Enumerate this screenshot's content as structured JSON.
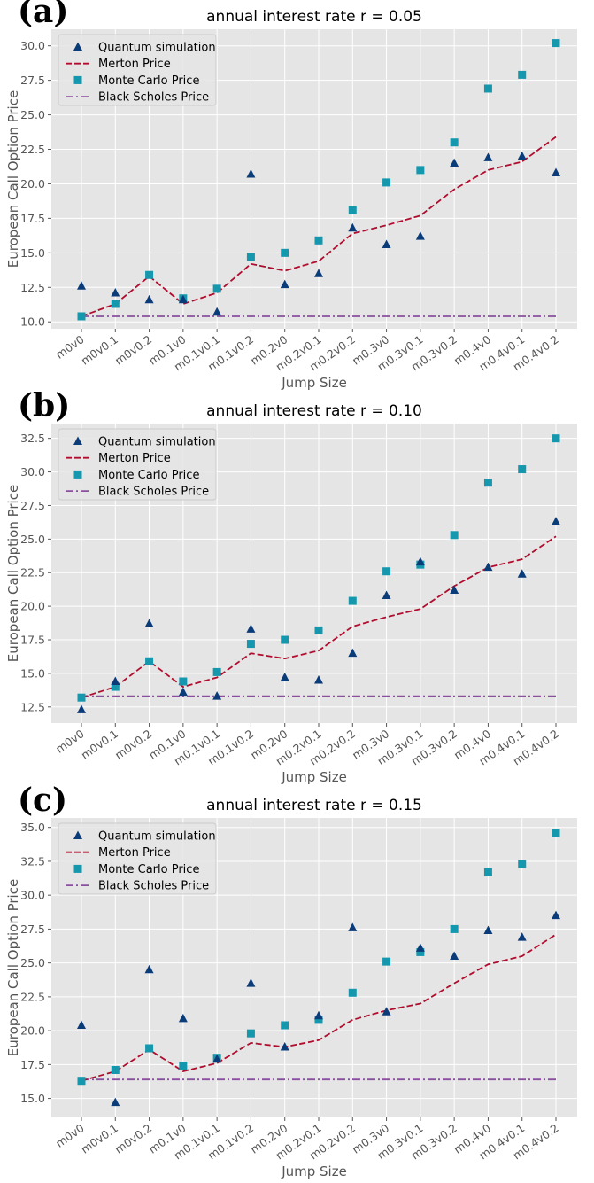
{
  "colors": {
    "quantum": "#0b3c7a",
    "merton": "#b00d2e",
    "monte_carlo": "#1597ad",
    "black_scholes": "#8a4f9e",
    "plot_bg": "#e5e5e5",
    "grid": "#ffffff"
  },
  "chart_data": [
    {
      "type": "line",
      "panel_label": "(a)",
      "title": "annual interest rate r = 0.05",
      "xlabel": "Jump Size",
      "ylabel": "European Call Option Price",
      "ylim": [
        9.5,
        31.2
      ],
      "yticks": [
        "10.0",
        "12.5",
        "15.0",
        "17.5",
        "20.0",
        "22.5",
        "25.0",
        "27.5",
        "30.0"
      ],
      "categories": [
        "m0v0",
        "m0v0.1",
        "m0v0.2",
        "m0.1v0",
        "m0.1v0.1",
        "m0.1v0.2",
        "m0.2v0",
        "m0.2v0.1",
        "m0.2v0.2",
        "m0.3v0",
        "m0.3v0.1",
        "m0.3v0.2",
        "m0.4v0",
        "m0.4v0.1",
        "m0.4v0.2"
      ],
      "legend": [
        "Quantum simulation",
        "Merton Price",
        "Monte Carlo Price",
        "Black Scholes Price"
      ],
      "series": [
        {
          "name": "Quantum simulation",
          "marker": "triangle",
          "values": [
            12.6,
            12.1,
            11.6,
            11.6,
            10.7,
            20.7,
            12.7,
            13.5,
            16.8,
            15.6,
            16.2,
            21.5,
            21.9,
            22.0,
            20.8
          ]
        },
        {
          "name": "Merton Price",
          "marker": "dashed-line",
          "values": [
            10.4,
            11.3,
            13.3,
            11.3,
            12.1,
            14.2,
            13.7,
            14.4,
            16.4,
            17.0,
            17.7,
            19.6,
            21.0,
            21.6,
            23.4
          ]
        },
        {
          "name": "Monte Carlo Price",
          "marker": "square",
          "values": [
            10.4,
            11.3,
            13.4,
            11.7,
            12.4,
            14.7,
            15.0,
            15.9,
            18.1,
            20.1,
            21.0,
            23.0,
            26.9,
            27.9,
            30.2
          ]
        },
        {
          "name": "Black Scholes Price",
          "marker": "dashdot-line",
          "values": [
            10.4,
            10.4,
            10.4,
            10.4,
            10.4,
            10.4,
            10.4,
            10.4,
            10.4,
            10.4,
            10.4,
            10.4,
            10.4,
            10.4,
            10.4
          ]
        }
      ]
    },
    {
      "type": "line",
      "panel_label": "(b)",
      "title": "annual interest rate r = 0.10",
      "xlabel": "Jump Size",
      "ylabel": "European Call Option Price",
      "ylim": [
        11.3,
        33.6
      ],
      "yticks": [
        "12.5",
        "15.0",
        "17.5",
        "20.0",
        "22.5",
        "25.0",
        "27.5",
        "30.0",
        "32.5"
      ],
      "categories": [
        "m0v0",
        "m0v0.1",
        "m0v0.2",
        "m0.1v0",
        "m0.1v0.1",
        "m0.1v0.2",
        "m0.2v0",
        "m0.2v0.1",
        "m0.2v0.2",
        "m0.3v0",
        "m0.3v0.1",
        "m0.3v0.2",
        "m0.4v0",
        "m0.4v0.1",
        "m0.4v0.2"
      ],
      "legend": [
        "Quantum simulation",
        "Merton Price",
        "Monte Carlo Price",
        "Black Scholes Price"
      ],
      "series": [
        {
          "name": "Quantum simulation",
          "marker": "triangle",
          "values": [
            12.3,
            14.4,
            18.7,
            13.6,
            13.3,
            18.3,
            14.7,
            14.5,
            16.5,
            20.8,
            23.3,
            21.2,
            22.9,
            22.4,
            26.3
          ]
        },
        {
          "name": "Merton Price",
          "marker": "dashed-line",
          "values": [
            13.2,
            14.0,
            15.9,
            14.0,
            14.7,
            16.5,
            16.1,
            16.7,
            18.5,
            19.2,
            19.8,
            21.5,
            22.9,
            23.5,
            25.2
          ]
        },
        {
          "name": "Monte Carlo Price",
          "marker": "square",
          "values": [
            13.2,
            14.0,
            15.9,
            14.4,
            15.1,
            17.2,
            17.5,
            18.2,
            20.4,
            22.6,
            23.1,
            25.3,
            29.2,
            30.2,
            32.5
          ]
        },
        {
          "name": "Black Scholes Price",
          "marker": "dashdot-line",
          "values": [
            13.3,
            13.3,
            13.3,
            13.3,
            13.3,
            13.3,
            13.3,
            13.3,
            13.3,
            13.3,
            13.3,
            13.3,
            13.3,
            13.3,
            13.3
          ]
        }
      ]
    },
    {
      "type": "line",
      "panel_label": "(c)",
      "title": "annual interest rate r = 0.15",
      "xlabel": "Jump Size",
      "ylabel": "European Call Option Price",
      "ylim": [
        13.6,
        35.7
      ],
      "yticks": [
        "15.0",
        "17.5",
        "20.0",
        "22.5",
        "25.0",
        "27.5",
        "30.0",
        "32.5",
        "35.0"
      ],
      "categories": [
        "m0v0",
        "m0v0.1",
        "m0v0.2",
        "m0.1v0",
        "m0.1v0.1",
        "m0.1v0.2",
        "m0.2v0",
        "m0.2v0.1",
        "m0.2v0.2",
        "m0.3v0",
        "m0.3v0.1",
        "m0.3v0.2",
        "m0.4v0",
        "m0.4v0.1",
        "m0.4v0.2"
      ],
      "legend": [
        "Quantum simulation",
        "Merton Price",
        "Monte Carlo Price",
        "Black Scholes Price"
      ],
      "series": [
        {
          "name": "Quantum simulation",
          "marker": "triangle",
          "values": [
            20.4,
            14.7,
            24.5,
            20.9,
            17.9,
            23.5,
            18.8,
            21.1,
            27.6,
            21.4,
            26.1,
            25.5,
            27.4,
            26.9,
            28.5
          ]
        },
        {
          "name": "Merton Price",
          "marker": "dashed-line",
          "values": [
            16.3,
            17.0,
            18.6,
            17.0,
            17.6,
            19.1,
            18.8,
            19.3,
            20.8,
            21.5,
            22.0,
            23.5,
            24.9,
            25.5,
            27.1
          ]
        },
        {
          "name": "Monte Carlo Price",
          "marker": "square",
          "values": [
            16.3,
            17.1,
            18.7,
            17.4,
            18.0,
            19.8,
            20.4,
            20.8,
            22.8,
            25.1,
            25.8,
            27.5,
            31.7,
            32.3,
            34.6
          ]
        },
        {
          "name": "Black Scholes Price",
          "marker": "dashdot-line",
          "values": [
            16.4,
            16.4,
            16.4,
            16.4,
            16.4,
            16.4,
            16.4,
            16.4,
            16.4,
            16.4,
            16.4,
            16.4,
            16.4,
            16.4,
            16.4
          ]
        }
      ]
    }
  ]
}
